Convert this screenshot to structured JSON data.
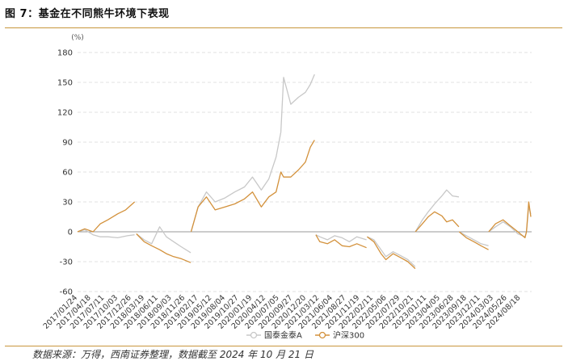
{
  "figure": {
    "title": "图 7：基金在不同熊牛环境下表现",
    "source": "数据来源：万得，西南证券整理，数据截至 2024 年 10 月 21 日"
  },
  "colors": {
    "series_a": "#c8c8c8",
    "series_b": "#d3913b",
    "grid": "#d9d9d9",
    "rule": "#c8963c"
  },
  "chart_data": {
    "type": "line",
    "ylabel": "(%)",
    "ylim": [
      -60,
      180
    ],
    "yticks": [
      -60,
      -30,
      0,
      30,
      60,
      90,
      120,
      150,
      180
    ],
    "grid": true,
    "legend_position": "bottom-center",
    "xticks": [
      "2017/01/24",
      "2017/04/18",
      "2017/07/11",
      "2017/10/03",
      "2017/12/26",
      "2018/03/19",
      "2018/06/11",
      "2018/09/03",
      "2018/11/26",
      "2019/02/17",
      "2019/05/12",
      "2019/08/04",
      "2019/10/27",
      "2020/01/19",
      "2020/04/12",
      "2020/07/05",
      "2020/09/27",
      "2020/12/20",
      "2021/03/12",
      "2021/06/04",
      "2021/08/27",
      "2021/11/19",
      "2022/02/11",
      "2022/05/06",
      "2022/07/29",
      "2022/10/21",
      "2023/01/11",
      "2023/04/05",
      "2023/06/28",
      "2023/09/18",
      "2023/12/11",
      "2024/03/03",
      "2024/05/26",
      "2024/08/18"
    ],
    "series": [
      {
        "name": "国泰金泰A",
        "segments": [
          {
            "x": [
              "2017/01/24",
              "2017/03/10",
              "2017/05/01",
              "2017/06/15",
              "2017/08/01",
              "2017/10/01",
              "2017/12/01",
              "2018/01/15"
            ],
            "y": [
              0,
              2,
              -3,
              -5,
              -5,
              -6,
              -4,
              -3
            ]
          },
          {
            "x": [
              "2018/01/26",
              "2018/03/15",
              "2018/05/01",
              "2018/06/20",
              "2018/08/01",
              "2018/09/15",
              "2018/11/01",
              "2018/12/31"
            ],
            "y": [
              -2,
              -8,
              -12,
              5,
              -5,
              -10,
              -15,
              -21
            ]
          },
          {
            "x": [
              "2019/01/02",
              "2019/02/15",
              "2019/04/08",
              "2019/06/01",
              "2019/08/01",
              "2019/10/01",
              "2019/12/01",
              "2020/01/20",
              "2020/03/15",
              "2020/05/01",
              "2020/06/15",
              "2020/07/15",
              "2020/08/01",
              "2020/09/15",
              "2020/11/01",
              "2020/12/15",
              "2021/01/15",
              "2021/02/10"
            ],
            "y": [
              0,
              25,
              40,
              30,
              34,
              40,
              45,
              55,
              42,
              53,
              75,
              100,
              155,
              128,
              135,
              140,
              148,
              158
            ]
          },
          {
            "x": [
              "2021/02/18",
              "2021/03/15",
              "2021/05/01",
              "2021/06/15",
              "2021/08/01",
              "2021/09/15",
              "2021/11/01",
              "2021/12/31"
            ],
            "y": [
              -3,
              -5,
              -8,
              -4,
              -6,
              -10,
              -5,
              -8
            ]
          },
          {
            "x": [
              "2022/01/04",
              "2022/02/15",
              "2022/04/01",
              "2022/05/01",
              "2022/06/15",
              "2022/08/01",
              "2022/09/15",
              "2022/10/31"
            ],
            "y": [
              -5,
              -8,
              -18,
              -25,
              -20,
              -24,
              -28,
              -35
            ]
          },
          {
            "x": [
              "2022/11/01",
              "2022/12/15",
              "2023/01/20",
              "2023/03/01",
              "2023/04/15",
              "2023/05/15",
              "2023/06/20",
              "2023/07/30"
            ],
            "y": [
              0,
              12,
              20,
              28,
              36,
              42,
              36,
              35
            ]
          },
          {
            "x": [
              "2023/08/01",
              "2023/09/15",
              "2023/11/01",
              "2023/12/15",
              "2024/01/31"
            ],
            "y": [
              0,
              -4,
              -8,
              -12,
              -14
            ]
          },
          {
            "x": [
              "2024/02/01",
              "2024/03/15",
              "2024/05/01",
              "2024/06/15",
              "2024/08/01",
              "2024/09/15",
              "2024/09/24",
              "2024/10/08",
              "2024/10/21"
            ],
            "y": [
              0,
              5,
              10,
              5,
              -2,
              -5,
              0,
              25,
              18
            ]
          }
        ]
      },
      {
        "name": "沪深300",
        "segments": [
          {
            "x": [
              "2017/01/24",
              "2017/03/10",
              "2017/05/01",
              "2017/06/15",
              "2017/08/01",
              "2017/10/01",
              "2017/11/20",
              "2018/01/15"
            ],
            "y": [
              0,
              3,
              0,
              8,
              12,
              18,
              22,
              30
            ]
          },
          {
            "x": [
              "2018/01/26",
              "2018/03/15",
              "2018/05/01",
              "2018/06/20",
              "2018/08/01",
              "2018/09/15",
              "2018/11/01",
              "2018/12/31"
            ],
            "y": [
              -2,
              -10,
              -14,
              -18,
              -22,
              -25,
              -27,
              -31
            ]
          },
          {
            "x": [
              "2019/01/02",
              "2019/02/15",
              "2019/04/08",
              "2019/06/01",
              "2019/08/01",
              "2019/10/01",
              "2019/12/01",
              "2020/01/20",
              "2020/03/15",
              "2020/05/01",
              "2020/06/15",
              "2020/07/15",
              "2020/08/01",
              "2020/09/15",
              "2020/11/01",
              "2020/12/15",
              "2021/01/15",
              "2021/02/10"
            ],
            "y": [
              0,
              25,
              35,
              22,
              25,
              28,
              33,
              40,
              25,
              35,
              40,
              60,
              55,
              55,
              62,
              70,
              85,
              92
            ]
          },
          {
            "x": [
              "2021/02/18",
              "2021/03/15",
              "2021/05/01",
              "2021/06/15",
              "2021/08/01",
              "2021/09/15",
              "2021/11/01",
              "2021/12/31"
            ],
            "y": [
              -3,
              -10,
              -12,
              -8,
              -14,
              -15,
              -12,
              -16
            ]
          },
          {
            "x": [
              "2022/01/04",
              "2022/02/15",
              "2022/04/01",
              "2022/05/01",
              "2022/06/15",
              "2022/08/01",
              "2022/09/15",
              "2022/10/31"
            ],
            "y": [
              -5,
              -10,
              -22,
              -28,
              -22,
              -26,
              -30,
              -37
            ]
          },
          {
            "x": [
              "2022/11/01",
              "2022/12/15",
              "2023/01/20",
              "2023/03/01",
              "2023/04/15",
              "2023/05/15",
              "2023/06/20",
              "2023/07/30"
            ],
            "y": [
              0,
              8,
              15,
              20,
              16,
              10,
              12,
              5
            ]
          },
          {
            "x": [
              "2023/08/01",
              "2023/09/15",
              "2023/11/01",
              "2023/12/15",
              "2024/01/31"
            ],
            "y": [
              0,
              -6,
              -10,
              -14,
              -18
            ]
          },
          {
            "x": [
              "2024/02/01",
              "2024/03/15",
              "2024/05/01",
              "2024/06/15",
              "2024/08/01",
              "2024/09/15",
              "2024/09/24",
              "2024/10/08",
              "2024/10/21"
            ],
            "y": [
              0,
              8,
              12,
              6,
              0,
              -6,
              0,
              30,
              15
            ]
          }
        ]
      }
    ]
  }
}
